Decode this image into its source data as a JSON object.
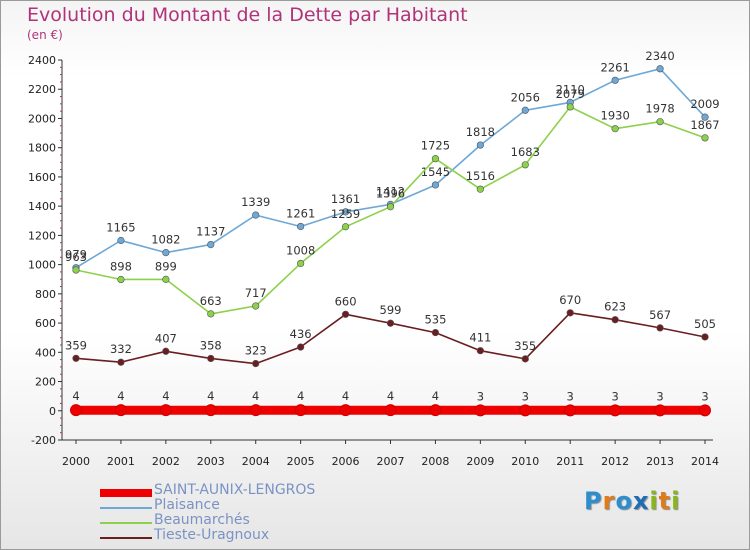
{
  "header": {
    "title": "Evolution du Montant de la Dette par Habitant",
    "subtitle": "(en €)"
  },
  "logo": {
    "letters": [
      "P",
      "r",
      "o",
      "x",
      "i",
      "t",
      "i"
    ],
    "colors": [
      "#2a8fd1",
      "#e07b1a",
      "#2a8fd1",
      "#1f6db5",
      "#8ab51b",
      "#e07b1a",
      "#8ab51b"
    ]
  },
  "chart_data": {
    "type": "line",
    "title": "Evolution du Montant de la Dette par Habitant",
    "ylabel": "(en €)",
    "xlabel": "",
    "x": [
      "2000",
      "2001",
      "2002",
      "2003",
      "2004",
      "2005",
      "2006",
      "2007",
      "2008",
      "2009",
      "2010",
      "2011",
      "2012",
      "2013",
      "2014"
    ],
    "ylim": [
      -200,
      2400
    ],
    "yticks": [
      -200,
      0,
      200,
      400,
      600,
      800,
      1000,
      1200,
      1400,
      1600,
      1800,
      2000,
      2200,
      2400
    ],
    "grid": false,
    "legend_position": "bottom-left",
    "series": [
      {
        "name": "SAINT-AUNIX-LENGROS",
        "color": "#ee0000",
        "labels": [
          "4",
          "4",
          "4",
          "4",
          "4",
          "4",
          "4",
          "4",
          "4",
          "3",
          "3",
          "3",
          "3",
          "3",
          "3"
        ],
        "values": [
          4,
          4,
          4,
          4,
          4,
          4,
          4,
          4,
          4,
          3,
          3,
          3,
          3,
          3,
          3
        ]
      },
      {
        "name": "Plaisance",
        "color": "#6da8d6",
        "labels": [
          "979",
          "1165",
          "1082",
          "1137",
          "1339",
          "1261",
          "1361",
          "1412",
          "1545",
          "1818",
          "2056",
          "2110",
          "2261",
          "2340",
          "2009"
        ],
        "values": [
          979,
          1165,
          1082,
          1137,
          1339,
          1261,
          1361,
          1412,
          1545,
          1818,
          2056,
          2110,
          2261,
          2340,
          2009
        ]
      },
      {
        "name": "Beaumarchés",
        "color": "#8cd14b",
        "labels": [
          "963",
          "898",
          "899",
          "663",
          "717",
          "1008",
          "1259",
          "1396",
          "1725",
          "1516",
          "1683",
          "2079",
          "1930",
          "1978",
          "1867"
        ],
        "values": [
          963,
          898,
          899,
          663,
          717,
          1008,
          1259,
          1396,
          1725,
          1516,
          1683,
          2079,
          1930,
          1978,
          1867
        ]
      },
      {
        "name": "Tieste-Uragnoux",
        "color": "#6b1e22",
        "labels": [
          "359",
          "332",
          "407",
          "358",
          "323",
          "436",
          "660",
          "599",
          "535",
          "411",
          "355",
          "670",
          "623",
          "567",
          "505"
        ],
        "values": [
          359,
          332,
          407,
          358,
          323,
          436,
          660,
          599,
          535,
          411,
          355,
          670,
          623,
          567,
          505
        ]
      }
    ]
  }
}
